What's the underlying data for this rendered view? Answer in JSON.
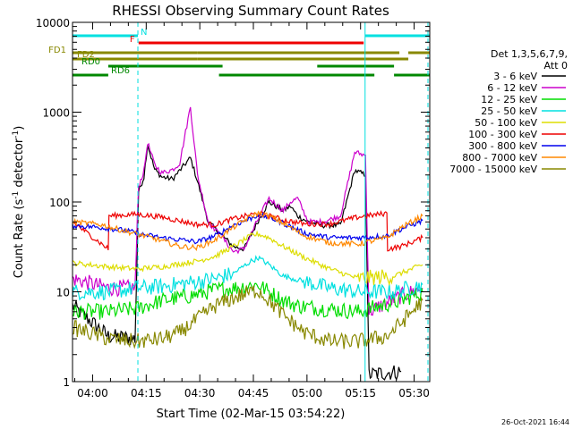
{
  "chart_data": {
    "type": "line",
    "title": "RHESSI Observing Summary Count Rates",
    "xlabel": "Start Time (02-Mar-15 03:54:22)",
    "ylabel_main": "Count Rate (s",
    "ylabel_sup1": "-1",
    "ylabel_mid": " detector",
    "ylabel_sup2": "-1",
    "ylabel_end": ")",
    "x_unit": "minutes since 03:54:22",
    "xlim": [
      0,
      100
    ],
    "ylim": [
      1,
      10000
    ],
    "yscale": "log",
    "x_ticks": [
      {
        "minute": 5.63,
        "label": "04:00"
      },
      {
        "minute": 20.63,
        "label": "04:15"
      },
      {
        "minute": 35.63,
        "label": "04:30"
      },
      {
        "minute": 50.63,
        "label": "04:45"
      },
      {
        "minute": 65.63,
        "label": "05:00"
      },
      {
        "minute": 80.63,
        "label": "05:15"
      },
      {
        "minute": 95.63,
        "label": "05:30"
      }
    ],
    "y_ticks": [
      {
        "value": 1,
        "label": "1"
      },
      {
        "value": 10,
        "label": "10"
      },
      {
        "value": 100,
        "label": "100"
      },
      {
        "value": 1000,
        "label": "1000"
      },
      {
        "value": 10000,
        "label": "10000"
      }
    ],
    "legend_header": [
      "Det 1,3,5,6,7,9,",
      "Att 0"
    ],
    "series": [
      {
        "name": "3 - 6 keV",
        "color": "#000000",
        "points": [
          [
            0,
            7
          ],
          [
            10,
            3.2
          ],
          [
            17.5,
            3
          ],
          [
            18.5,
            130
          ],
          [
            20,
            190
          ],
          [
            21,
            440
          ],
          [
            23,
            230
          ],
          [
            25,
            190
          ],
          [
            28,
            180
          ],
          [
            33,
            310
          ],
          [
            35,
            170
          ],
          [
            38,
            60
          ],
          [
            42,
            42
          ],
          [
            45,
            32
          ],
          [
            48,
            30
          ],
          [
            52,
            62
          ],
          [
            55,
            100
          ],
          [
            59,
            80
          ],
          [
            61,
            90
          ],
          [
            63,
            70
          ],
          [
            66,
            60
          ],
          [
            70,
            55
          ],
          [
            75,
            55
          ],
          [
            79,
            225
          ],
          [
            82,
            200
          ],
          [
            83,
            1.2
          ],
          [
            92,
            1.3
          ]
        ]
      },
      {
        "name": "6 - 12 keV",
        "color": "#cc00cc",
        "points": [
          [
            0,
            14
          ],
          [
            10,
            11
          ],
          [
            17.5,
            11
          ],
          [
            18.5,
            150
          ],
          [
            20,
            220
          ],
          [
            21,
            460
          ],
          [
            23,
            260
          ],
          [
            25,
            210
          ],
          [
            28,
            230
          ],
          [
            30,
            270
          ],
          [
            33,
            1150
          ],
          [
            35,
            200
          ],
          [
            38,
            60
          ],
          [
            42,
            40
          ],
          [
            45,
            28
          ],
          [
            48,
            30
          ],
          [
            52,
            65
          ],
          [
            55,
            110
          ],
          [
            59,
            80
          ],
          [
            61,
            100
          ],
          [
            63,
            110
          ],
          [
            66,
            60
          ],
          [
            70,
            60
          ],
          [
            75,
            70
          ],
          [
            79,
            360
          ],
          [
            82,
            330
          ],
          [
            83,
            6
          ],
          [
            92,
            9
          ],
          [
            98,
            11
          ]
        ]
      },
      {
        "name": "12 - 25 keV",
        "color": "#00dd00",
        "points": [
          [
            0,
            6
          ],
          [
            10,
            6
          ],
          [
            18,
            6.5
          ],
          [
            25,
            8
          ],
          [
            33,
            9
          ],
          [
            40,
            10.5
          ],
          [
            45,
            11
          ],
          [
            48,
            11.5
          ],
          [
            52,
            12
          ],
          [
            55,
            10
          ],
          [
            59,
            8
          ],
          [
            63,
            7
          ],
          [
            70,
            6.5
          ],
          [
            80,
            6
          ],
          [
            92,
            8
          ],
          [
            98,
            10
          ]
        ]
      },
      {
        "name": "25 - 50 keV",
        "color": "#00e0e0",
        "points": [
          [
            0,
            10
          ],
          [
            10,
            10
          ],
          [
            18,
            11
          ],
          [
            25,
            11.5
          ],
          [
            35,
            13
          ],
          [
            40,
            14
          ],
          [
            45,
            16
          ],
          [
            50,
            22
          ],
          [
            52,
            24
          ],
          [
            55,
            20
          ],
          [
            59,
            15
          ],
          [
            65,
            13
          ],
          [
            72,
            11
          ],
          [
            80,
            10
          ],
          [
            90,
            10
          ],
          [
            98,
            12
          ]
        ]
      },
      {
        "name": "50 - 100 keV",
        "color": "#dddd00",
        "points": [
          [
            0,
            21
          ],
          [
            10,
            19
          ],
          [
            18,
            18
          ],
          [
            25,
            19
          ],
          [
            35,
            22
          ],
          [
            40,
            25
          ],
          [
            45,
            32
          ],
          [
            50,
            42
          ],
          [
            52,
            44
          ],
          [
            55,
            40
          ],
          [
            59,
            32
          ],
          [
            65,
            24
          ],
          [
            72,
            18
          ],
          [
            80,
            14
          ],
          [
            90,
            15
          ],
          [
            98,
            20
          ]
        ]
      },
      {
        "name": "100 - 300 keV",
        "color": "#ee0000",
        "points": [
          [
            0,
            60
          ],
          [
            10,
            30
          ],
          [
            10.2,
            70
          ],
          [
            18,
            73
          ],
          [
            25,
            68
          ],
          [
            35,
            56
          ],
          [
            40,
            56
          ],
          [
            45,
            65
          ],
          [
            50,
            72
          ],
          [
            52,
            74
          ],
          [
            55,
            70
          ],
          [
            59,
            63
          ],
          [
            65,
            57
          ],
          [
            72,
            57
          ],
          [
            80,
            68
          ],
          [
            88,
            75
          ],
          [
            88.2,
            30
          ],
          [
            92,
            32
          ],
          [
            98,
            40
          ]
        ]
      },
      {
        "name": "300 - 800 keV",
        "color": "#0000ee",
        "points": [
          [
            0,
            55
          ],
          [
            8,
            52
          ],
          [
            15,
            48
          ],
          [
            20,
            43
          ],
          [
            25,
            40
          ],
          [
            30,
            38
          ],
          [
            35,
            36
          ],
          [
            40,
            42
          ],
          [
            45,
            55
          ],
          [
            50,
            66
          ],
          [
            52,
            72
          ],
          [
            55,
            68
          ],
          [
            59,
            58
          ],
          [
            65,
            45
          ],
          [
            72,
            40
          ],
          [
            80,
            40
          ],
          [
            88,
            42
          ],
          [
            92,
            50
          ],
          [
            98,
            62
          ]
        ]
      },
      {
        "name": "800 - 7000 keV",
        "color": "#ff8800",
        "points": [
          [
            0,
            60
          ],
          [
            8,
            56
          ],
          [
            15,
            47
          ],
          [
            20,
            42
          ],
          [
            25,
            37
          ],
          [
            30,
            32
          ],
          [
            35,
            31
          ],
          [
            40,
            38
          ],
          [
            45,
            52
          ],
          [
            50,
            70
          ],
          [
            52,
            75
          ],
          [
            55,
            70
          ],
          [
            59,
            58
          ],
          [
            65,
            42
          ],
          [
            72,
            35
          ],
          [
            80,
            34
          ],
          [
            88,
            40
          ],
          [
            92,
            52
          ],
          [
            98,
            70
          ]
        ]
      },
      {
        "name": "7000 - 15000 keV",
        "color": "#888800",
        "points": [
          [
            0,
            4
          ],
          [
            10,
            3
          ],
          [
            18,
            2.8
          ],
          [
            25,
            3
          ],
          [
            30,
            3.5
          ],
          [
            35,
            5
          ],
          [
            40,
            7
          ],
          [
            45,
            8.5
          ],
          [
            50,
            10
          ],
          [
            52,
            10.5
          ],
          [
            55,
            8
          ],
          [
            59,
            5.5
          ],
          [
            65,
            3.5
          ],
          [
            72,
            2.8
          ],
          [
            80,
            2.8
          ],
          [
            88,
            3.2
          ],
          [
            92,
            4.5
          ],
          [
            98,
            8
          ]
        ]
      }
    ],
    "flag_bars": [
      {
        "label": "N",
        "color": "#00e0e0",
        "y_label": "",
        "segments": [
          [
            0,
            18.3
          ],
          [
            81.9,
            100
          ]
        ]
      },
      {
        "label": "F",
        "color": "#ee0000",
        "y_label": "",
        "segments": [
          [
            18.5,
            81.5
          ]
        ]
      },
      {
        "label": "FD1",
        "color": "#888800",
        "y_label": "FD1",
        "segments": [
          [
            0,
            35
          ],
          [
            35,
            91.5
          ],
          [
            94,
            100
          ]
        ]
      },
      {
        "label": "FD2",
        "color": "#888800",
        "y_label": "FD2",
        "segments": [
          [
            0,
            35
          ],
          [
            35,
            94
          ]
        ]
      },
      {
        "label": "RD0",
        "color": "#008800",
        "y_label": "RD0",
        "segments": [
          [
            10,
            42
          ],
          [
            68.5,
            90
          ]
        ]
      },
      {
        "label": "RD6",
        "color": "#008800",
        "y_label": "RD6",
        "segments": [
          [
            0,
            10
          ],
          [
            41,
            84.5
          ],
          [
            90,
            100
          ]
        ]
      }
    ],
    "vertical_markers": [
      {
        "minute": 0,
        "style": "solid"
      },
      {
        "minute": 18.3,
        "style": "dashed"
      },
      {
        "minute": 81.9,
        "style": "solid"
      },
      {
        "minute": 99.5,
        "style": "dashed"
      }
    ],
    "timestamp": "26-Oct-2021 16:44"
  }
}
